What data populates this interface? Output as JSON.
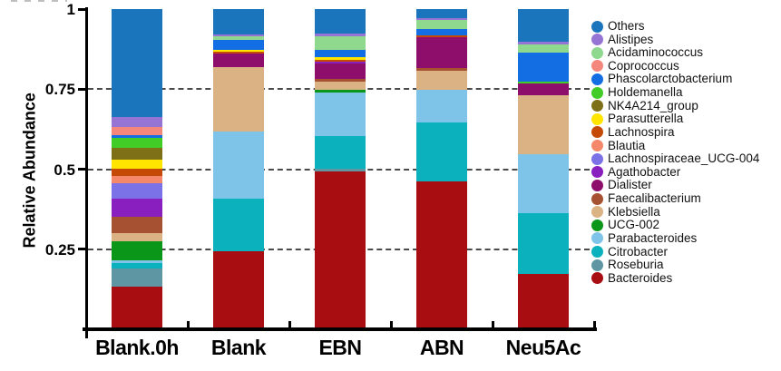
{
  "chart_data": {
    "type": "stacked_bar",
    "title": "",
    "ylabel": "Relative Abundance",
    "xlabel": "",
    "ylim": [
      0,
      1
    ],
    "grid": {
      "style": "dashed",
      "values": [
        0.75,
        0.5,
        0.25
      ]
    },
    "legend_position": "right",
    "yticks": [
      {
        "value": 1,
        "label": "1"
      },
      {
        "value": 0.75,
        "label": "0.75"
      },
      {
        "value": 0.5,
        "label": "0.5"
      },
      {
        "value": 0.25,
        "label": "0.25"
      }
    ],
    "categories": [
      "Blank.0h",
      "Blank",
      "EBN",
      "ABN",
      "Neu5Ac"
    ],
    "series": [
      {
        "name": "Others",
        "color": "#1B75BC",
        "values": [
          0.337,
          0.079,
          0.076,
          0.028,
          0.102
        ]
      },
      {
        "name": "Alistipes",
        "color": "#9674D4",
        "values": [
          0.031,
          0.007,
          0.008,
          0.007,
          0.009
        ]
      },
      {
        "name": "Acidaminococcus",
        "color": "#8FD98F",
        "values": [
          0,
          0.011,
          0.044,
          0.028,
          0.025
        ]
      },
      {
        "name": "Coprococcus",
        "color": "#F5867C",
        "values": [
          0.026,
          0,
          0,
          0,
          0
        ]
      },
      {
        "name": "Phascolarctobacterium",
        "color": "#146EE3",
        "values": [
          0.008,
          0.03,
          0.023,
          0.019,
          0.09
        ]
      },
      {
        "name": "Holdemanella",
        "color": "#42CC28",
        "values": [
          0.032,
          0,
          0,
          0,
          0.006
        ]
      },
      {
        "name": "NK4A214_group",
        "color": "#7D7017",
        "values": [
          0.035,
          0,
          0,
          0,
          0
        ]
      },
      {
        "name": "Parasutterella",
        "color": "#FFE500",
        "values": [
          0.03,
          0.006,
          0.007,
          0,
          0
        ]
      },
      {
        "name": "Lachnospira",
        "color": "#C54A05",
        "values": [
          0.023,
          0.006,
          0.006,
          0.006,
          0
        ]
      },
      {
        "name": "Blautia",
        "color": "#F5876B",
        "values": [
          0.023,
          0,
          0,
          0,
          0
        ]
      },
      {
        "name": "Lachnospiraceae_UCG-004",
        "color": "#7B72E8",
        "values": [
          0.046,
          0,
          0,
          0,
          0
        ]
      },
      {
        "name": "Agathobacter",
        "color": "#8A1FC0",
        "values": [
          0.058,
          0,
          0.007,
          0,
          0
        ]
      },
      {
        "name": "Dialister",
        "color": "#8E0F6B",
        "values": [
          0,
          0.041,
          0.047,
          0.097,
          0.037
        ]
      },
      {
        "name": "Faecalibacterium",
        "color": "#A65232",
        "values": [
          0.051,
          0,
          0.008,
          0.007,
          0
        ]
      },
      {
        "name": "Klebsiella",
        "color": "#DBB283",
        "values": [
          0.026,
          0.203,
          0.025,
          0.059,
          0.184
        ]
      },
      {
        "name": "UCG-002",
        "color": "#0A9618",
        "values": [
          0.06,
          0,
          0.01,
          0,
          0
        ]
      },
      {
        "name": "Parabacteroides",
        "color": "#7EC4E8",
        "values": [
          0.006,
          0.208,
          0.137,
          0.104,
          0.184
        ]
      },
      {
        "name": "Citrobacter",
        "color": "#0CB1BE",
        "values": [
          0.018,
          0.166,
          0.1,
          0.184,
          0.189
        ]
      },
      {
        "name": "Roseburia",
        "color": "#5E96A3",
        "values": [
          0.058,
          0,
          0.008,
          0,
          0
        ]
      },
      {
        "name": "Bacteroides",
        "color": "#A80D12",
        "values": [
          0.132,
          0.243,
          0.494,
          0.461,
          0.174
        ]
      }
    ]
  }
}
